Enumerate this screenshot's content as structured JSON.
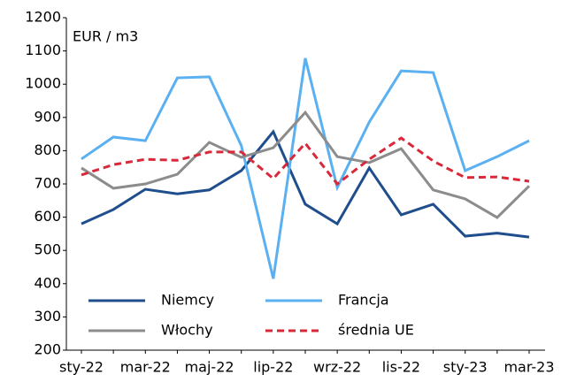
{
  "chart_data": {
    "type": "line",
    "y_label": "EUR / m3",
    "categories": [
      "sty-22",
      null,
      "mar-22",
      null,
      "maj-22",
      null,
      "lip-22",
      null,
      "wrz-22",
      null,
      "lis-22",
      null,
      "sty-23",
      null,
      "mar-23"
    ],
    "series": [
      {
        "name": "Niemcy",
        "color": "#1f4e8c",
        "dash": "solid",
        "values": [
          580,
          623,
          684,
          670,
          682,
          740,
          857,
          639,
          580,
          748,
          607,
          639,
          543,
          552,
          540
        ]
      },
      {
        "name": "Francja",
        "color": "#5ab0f0",
        "dash": "solid",
        "values": [
          775,
          841,
          830,
          1019,
          1022,
          815,
          415,
          1078,
          689,
          886,
          1040,
          1035,
          740,
          782,
          830
        ]
      },
      {
        "name": "Włochy",
        "color": "#8c8c8c",
        "dash": "solid",
        "values": [
          748,
          687,
          700,
          729,
          825,
          780,
          809,
          915,
          782,
          764,
          806,
          682,
          655,
          599,
          694
        ]
      },
      {
        "name": "średnia UE",
        "color": "#d9283a",
        "dash": "dashed",
        "values": [
          727,
          758,
          774,
          771,
          796,
          796,
          716,
          822,
          700,
          774,
          838,
          769,
          719,
          721,
          708
        ]
      }
    ],
    "ylim": [
      200,
      1200
    ],
    "yticks": [
      200,
      300,
      400,
      500,
      600,
      700,
      800,
      900,
      1000,
      1100,
      1200
    ],
    "grid": false,
    "legend": "lower left"
  }
}
